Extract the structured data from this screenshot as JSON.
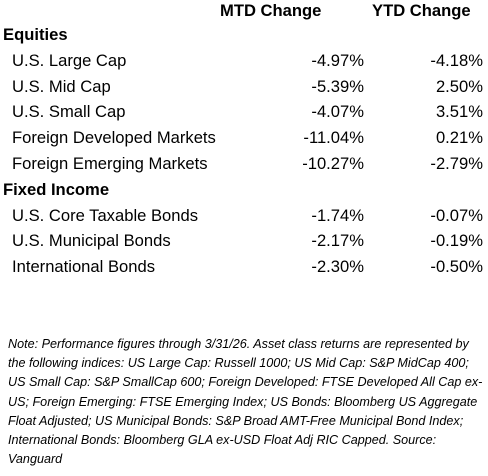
{
  "header": {
    "mtd_label": "MTD Change",
    "ytd_label": "YTD Change"
  },
  "sections": [
    {
      "title": "Equities",
      "rows": [
        {
          "label": "U.S. Large Cap",
          "mtd": "-4.97%",
          "ytd": "-4.18%"
        },
        {
          "label": "U.S. Mid Cap",
          "mtd": "-5.39%",
          "ytd": "2.50%"
        },
        {
          "label": "U.S. Small Cap",
          "mtd": "-4.07%",
          "ytd": "3.51%"
        },
        {
          "label": "Foreign Developed Markets",
          "mtd": "-11.04%",
          "ytd": "0.21%"
        },
        {
          "label": "Foreign Emerging Markets",
          "mtd": "-10.27%",
          "ytd": "-2.79%"
        }
      ]
    },
    {
      "title": "Fixed Income",
      "rows": [
        {
          "label": "U.S. Core Taxable Bonds",
          "mtd": "-1.74%",
          "ytd": "-0.07%"
        },
        {
          "label": "U.S. Municipal Bonds",
          "mtd": "-2.17%",
          "ytd": "-0.19%"
        },
        {
          "label": "International Bonds",
          "mtd": "-2.30%",
          "ytd": "-0.50%"
        }
      ]
    }
  ],
  "note": "Note: Performance figures through 3/31/26. Asset class returns are represented by the following indices: US Large Cap: Russell 1000; US Mid Cap: S&P MidCap 400; US Small Cap: S&P SmallCap 600; Foreign Developed: FTSE Developed All Cap ex-US; Foreign Emerging: FTSE Emerging Index; US Bonds: Bloomberg US Aggregate Float Adjusted; US Municipal Bonds: S&P Broad AMT-Free Municipal Bond Index; International Bonds: Bloomberg GLA ex-USD Float Adj RIC Capped. Source: Vanguard"
}
